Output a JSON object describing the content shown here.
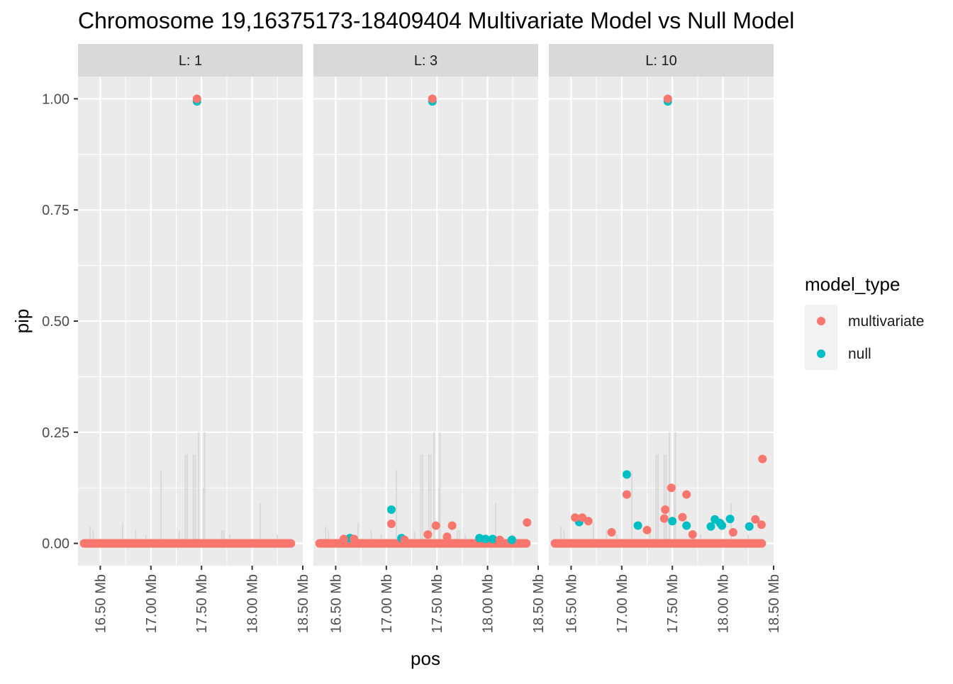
{
  "chart_data": {
    "type": "scatter",
    "title": "Chromosome 19,16375173-18409404 Multivariate Model vs Null Model",
    "xlabel": "pos",
    "ylabel": "pip",
    "xlim": [
      16.28,
      18.5
    ],
    "ylim": [
      -0.05,
      1.05
    ],
    "x_ticks": [
      16.5,
      17.0,
      17.5,
      18.0,
      18.5
    ],
    "x_tick_labels": [
      "16.50 Mb",
      "17.00 Mb",
      "17.50 Mb",
      "18.00 Mb",
      "18.50 Mb"
    ],
    "y_ticks": [
      0,
      0.25,
      0.5,
      0.75,
      1.0
    ],
    "y_tick_labels": [
      "0.00",
      "0.25",
      "0.50",
      "0.75",
      "1.00"
    ],
    "grid": true,
    "legend": {
      "title": "model_type",
      "position": "right",
      "entries": [
        {
          "label": "multivariate",
          "color": "#F8766D"
        },
        {
          "label": "null",
          "color": "#00BFC4"
        }
      ]
    },
    "background_lines": {
      "color": "#d9d9d9",
      "x": [
        16.4,
        16.43,
        16.72,
        16.85,
        16.95,
        17.1,
        17.28,
        17.34,
        17.36,
        17.42,
        17.44,
        17.47,
        17.52,
        17.53,
        17.7,
        17.72,
        17.78,
        18.08,
        18.25
      ],
      "y": [
        0.038,
        0.03,
        0.047,
        0.03,
        0.02,
        0.165,
        0.028,
        0.2,
        0.2,
        0.2,
        0.2,
        0.25,
        0.125,
        0.25,
        0.03,
        0.03,
        0.02,
        0.09,
        0.02
      ]
    },
    "panels": [
      {
        "label": "L: 1",
        "series": [
          {
            "name": "null",
            "x": [
              17.455
            ],
            "y": [
              0.994
            ]
          },
          {
            "name": "multivariate",
            "x": [
              17.455
            ],
            "y": [
              1.0
            ]
          }
        ]
      },
      {
        "label": "L: 3",
        "series": [
          {
            "name": "null",
            "x": [
              17.455,
              17.05,
              17.15,
              16.64,
              17.92,
              17.98,
              18.05,
              18.24
            ],
            "y": [
              0.994,
              0.076,
              0.012,
              0.012,
              0.012,
              0.01,
              0.01,
              0.008
            ]
          },
          {
            "name": "multivariate",
            "x": [
              17.455,
              17.05,
              17.49,
              17.65,
              18.39,
              16.58,
              16.68,
              17.41,
              17.6,
              17.18,
              18.12
            ],
            "y": [
              1.0,
              0.044,
              0.04,
              0.04,
              0.047,
              0.01,
              0.01,
              0.02,
              0.015,
              0.008,
              0.008
            ]
          }
        ]
      },
      {
        "label": "L: 10",
        "series": [
          {
            "name": "null",
            "x": [
              17.455,
              17.05,
              17.16,
              17.5,
              17.64,
              16.58,
              17.92,
              17.97,
              18.07,
              18.26,
              17.99,
              17.88
            ],
            "y": [
              0.994,
              0.155,
              0.04,
              0.05,
              0.04,
              0.048,
              0.054,
              0.046,
              0.055,
              0.038,
              0.04,
              0.038
            ]
          },
          {
            "name": "multivariate",
            "x": [
              17.455,
              18.39,
              17.49,
              17.43,
              17.64,
              17.05,
              16.54,
              16.61,
              16.67,
              17.42,
              17.6,
              18.32,
              18.38,
              16.9,
              17.25,
              17.7,
              18.1
            ],
            "y": [
              1.0,
              0.19,
              0.125,
              0.076,
              0.11,
              0.11,
              0.058,
              0.058,
              0.05,
              0.056,
              0.059,
              0.054,
              0.042,
              0.025,
              0.03,
              0.02,
              0.025
            ]
          }
        ]
      }
    ]
  }
}
